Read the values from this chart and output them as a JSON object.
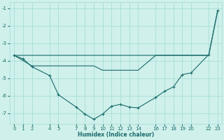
{
  "xlabel": "Humidex (Indice chaleur)",
  "background_color": "#cff0eb",
  "grid_color": "#a8ddd7",
  "line_color": "#1a6b6b",
  "xlim": [
    -0.5,
    23.5
  ],
  "ylim": [
    -7.6,
    -0.65
  ],
  "yticks": [
    -7,
    -6,
    -5,
    -4,
    -3,
    -2,
    -1
  ],
  "xticks": [
    0,
    1,
    2,
    4,
    5,
    7,
    8,
    9,
    10,
    11,
    12,
    13,
    14,
    16,
    17,
    18,
    19,
    20,
    22,
    23
  ],
  "series1_x": [
    0,
    1,
    2,
    4,
    5,
    7,
    8,
    9,
    10,
    11,
    12,
    13,
    14,
    16,
    17,
    18,
    19,
    20,
    22,
    23
  ],
  "series1_y": [
    -3.7,
    -3.9,
    -4.35,
    -4.85,
    -5.95,
    -6.65,
    -7.05,
    -7.35,
    -7.05,
    -6.6,
    -6.5,
    -6.65,
    -6.7,
    -6.1,
    -5.75,
    -5.5,
    -4.8,
    -4.7,
    -3.65,
    -1.15
  ],
  "series2_x": [
    0,
    2,
    4,
    5,
    7,
    9,
    10,
    14,
    16,
    20,
    22
  ],
  "series2_y": [
    -3.7,
    -4.3,
    -4.3,
    -4.3,
    -4.3,
    -4.3,
    -4.55,
    -4.55,
    -3.7,
    -3.7,
    -3.7
  ],
  "series3_x": [
    0,
    22,
    23
  ],
  "series3_y": [
    -3.7,
    -3.7,
    -1.15
  ],
  "marker_x": [
    0,
    1,
    2,
    4,
    5,
    7,
    8,
    9,
    10,
    11,
    12,
    13,
    14,
    16,
    17,
    18,
    19,
    20,
    22,
    23
  ],
  "marker_y": [
    -3.7,
    -3.9,
    -4.35,
    -4.85,
    -5.95,
    -6.65,
    -7.05,
    -7.35,
    -7.05,
    -6.6,
    -6.5,
    -6.65,
    -6.7,
    -6.1,
    -5.75,
    -5.5,
    -4.8,
    -4.7,
    -3.65,
    -1.15
  ]
}
